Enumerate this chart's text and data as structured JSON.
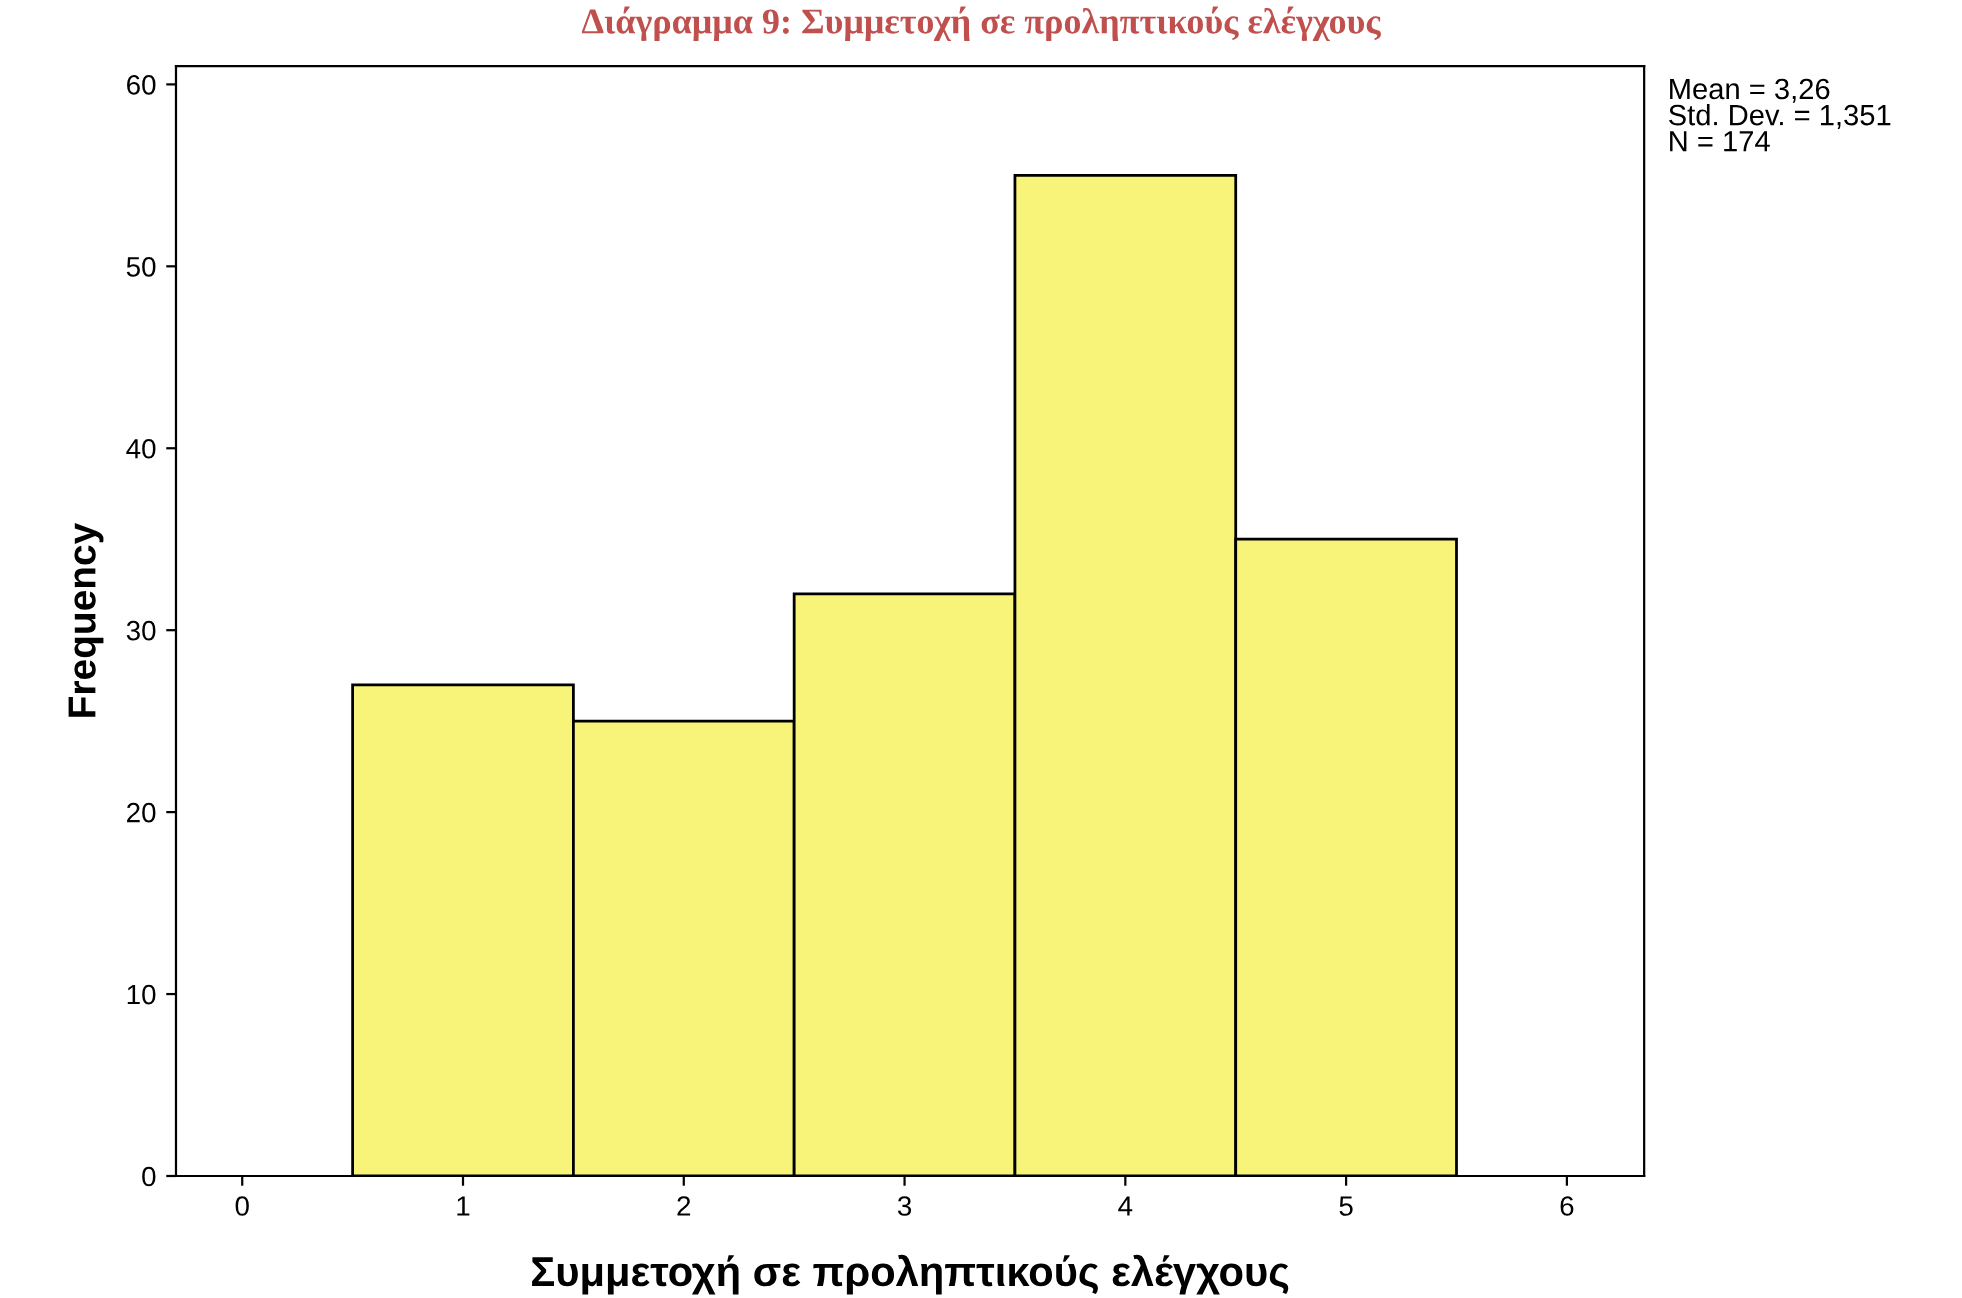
{
  "chart_data": {
    "type": "histogram",
    "title": "Διάγραμμα 9: Συμμετοχή σε προληπτικούς ελέγχους",
    "xlabel": "Συμμετοχή σε προληπτικούς ελέγχους",
    "ylabel": "Frequency",
    "bins": [
      0.5,
      1.5,
      2.5,
      3.5,
      4.5,
      5.5
    ],
    "values": [
      27,
      25,
      32,
      55,
      35
    ],
    "color": "#f8f47a",
    "xlim": [
      -0.3,
      6.35
    ],
    "ylim": [
      0,
      61
    ],
    "xticks": [
      0,
      1,
      2,
      3,
      4,
      5,
      6
    ],
    "yticks": [
      0,
      10,
      20,
      30,
      40,
      50,
      60
    ],
    "grid": false,
    "annotations": [
      "Mean = 3,26\nStd. Dev. = 1,351\nN = 174"
    ]
  }
}
